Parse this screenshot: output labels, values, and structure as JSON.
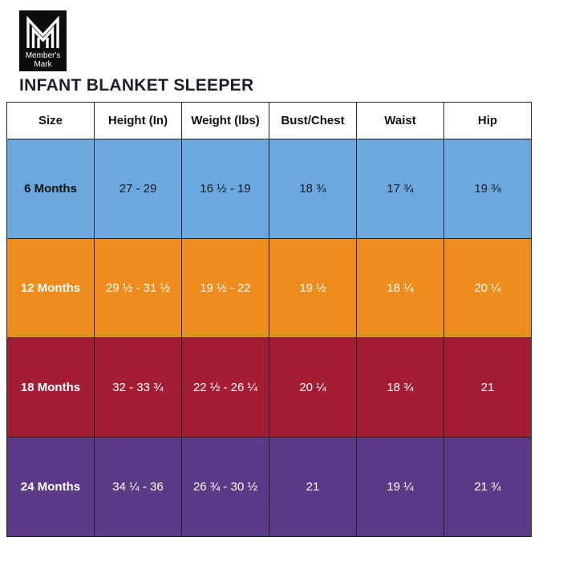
{
  "brand": {
    "logo_line1": "Member's",
    "logo_line2": "Mark"
  },
  "title": "INFANT BLANKET SLEEPER",
  "table": {
    "headers": [
      "Size",
      "Height (In)",
      "Weight (lbs)",
      "Bust/Chest",
      "Waist",
      "Hip"
    ],
    "rows": [
      {
        "color": "#6aa8df",
        "cells": [
          "6 Months",
          "27 - 29",
          "16 ½ - 19",
          "18 ¾",
          "17 ¾",
          "19 ⅜"
        ]
      },
      {
        "color": "#ef8c1e",
        "cells": [
          "12 Months",
          "29 ½ - 31 ½",
          "19 ½ - 22",
          "19 ½",
          "18 ¼",
          "20 ¼"
        ]
      },
      {
        "color": "#a31d35",
        "cells": [
          "18 Months",
          "32 - 33 ¾",
          "22 ½ - 26 ¼",
          "20 ¼",
          "18 ¾",
          "21"
        ]
      },
      {
        "color": "#5b3a87",
        "cells": [
          "24 Months",
          "34 ¼ - 36",
          "26 ¾ - 30 ½",
          "21",
          "19 ¼",
          "21 ¾"
        ]
      }
    ]
  }
}
